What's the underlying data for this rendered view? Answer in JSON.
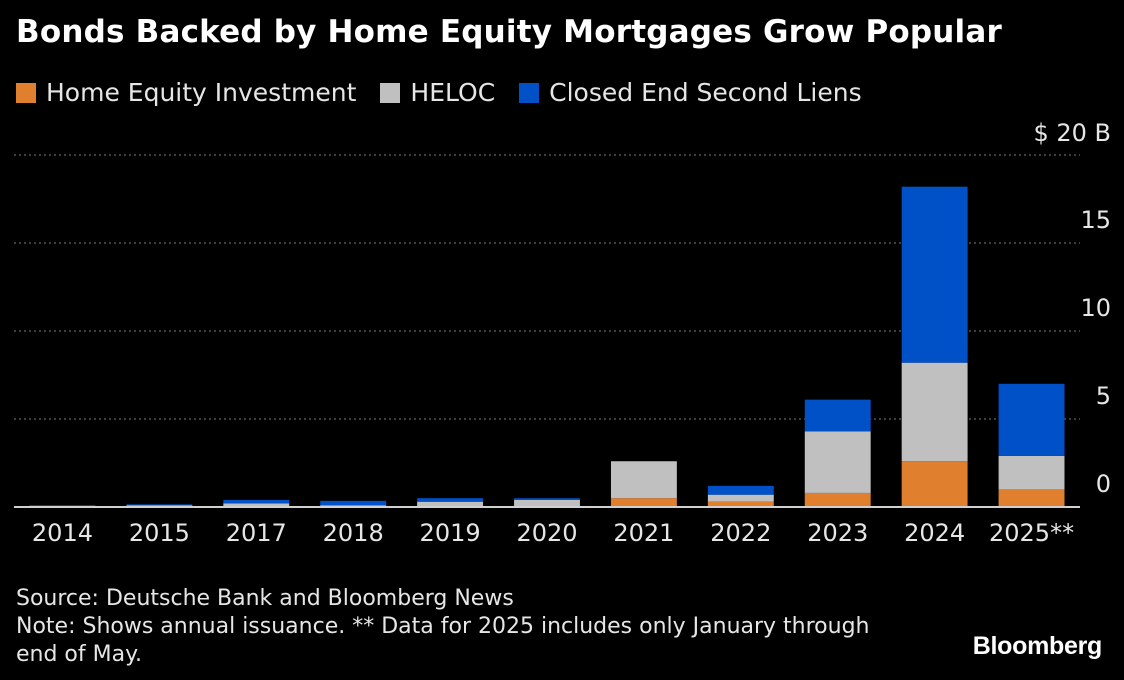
{
  "title": "Bonds Backed by Home Equity Mortgages Grow Popular",
  "source": "Source: Deutsche Bank and Bloomberg News",
  "note": "Note: Shows annual issuance. ** Data for 2025 includes only January through end of May.",
  "logo": "Bloomberg",
  "chart_data": {
    "type": "bar",
    "stacked": true,
    "categories": [
      "2014",
      "2015",
      "2017",
      "2018",
      "2019",
      "2020",
      "2021",
      "2022",
      "2023",
      "2024",
      "2025**"
    ],
    "series": [
      {
        "name": "Home Equity Investment",
        "color": "#e07f2e",
        "values": [
          0,
          0,
          0,
          0,
          0,
          0,
          0.5,
          0.3,
          0.8,
          2.6,
          1.0
        ]
      },
      {
        "name": "HELOC",
        "color": "#c0c0c0",
        "values": [
          0.05,
          0.1,
          0.2,
          0.1,
          0.3,
          0.4,
          2.1,
          0.4,
          3.5,
          5.6,
          1.9
        ]
      },
      {
        "name": "Closed End Second Liens",
        "color": "#0050c8",
        "values": [
          0.05,
          0.05,
          0.2,
          0.25,
          0.2,
          0.1,
          0,
          0.5,
          1.8,
          10.0,
          4.1
        ]
      }
    ],
    "ylim": [
      0,
      20
    ],
    "yticks": [
      0,
      5,
      10,
      15,
      20
    ],
    "ytick_labels": [
      "0",
      "5",
      "10",
      "15",
      "$ 20 B"
    ],
    "axis_position": "right",
    "grid": true
  }
}
